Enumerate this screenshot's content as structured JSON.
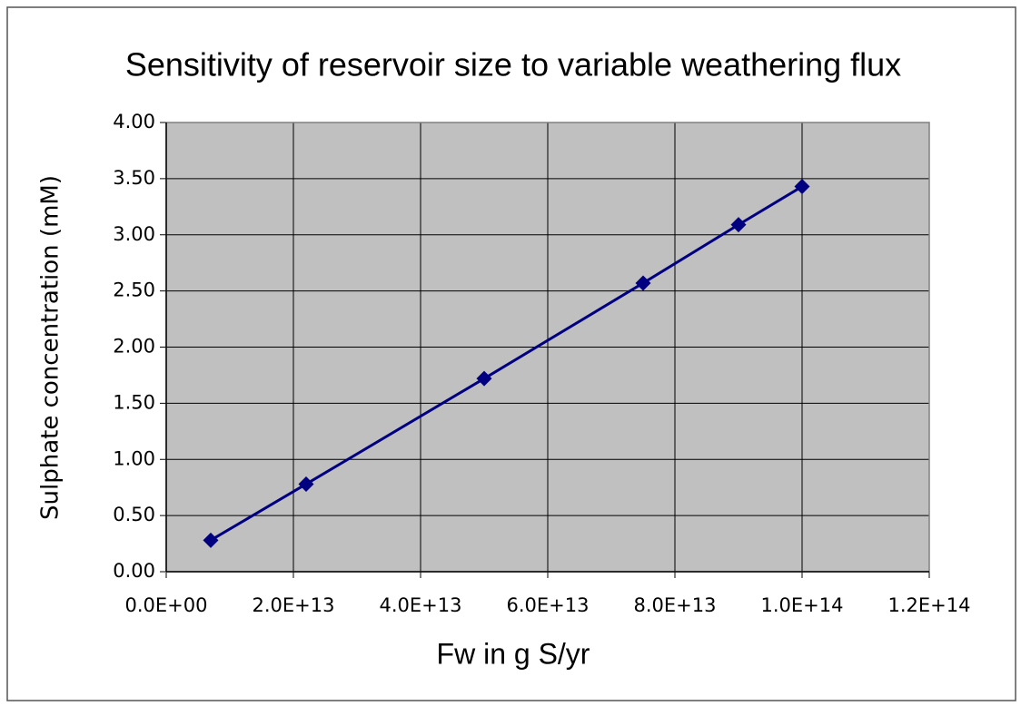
{
  "chart_data": {
    "type": "line",
    "title": "Sensitivity of reservoir size to variable weathering flux",
    "x_label": "Fw in g S/yr",
    "y_label": "Sulphate concentration (mM)",
    "x": [
      7000000000000,
      22000000000000,
      50000000000000,
      75000000000000,
      90000000000000,
      100000000000000
    ],
    "series": [
      {
        "color": "#000080",
        "values": [
          0.28,
          0.78,
          1.72,
          2.57,
          3.09,
          3.43
        ]
      }
    ],
    "xlim": [
      0,
      120000000000000
    ],
    "xticks": [
      {
        "value": 0,
        "label": "0.0E+00"
      },
      {
        "value": 20000000000000,
        "label": "2.0E+13"
      },
      {
        "value": 40000000000000,
        "label": "4.0E+13"
      },
      {
        "value": 60000000000000,
        "label": "6.0E+13"
      },
      {
        "value": 80000000000000,
        "label": "8.0E+13"
      },
      {
        "value": 100000000000000,
        "label": "1.0E+14"
      },
      {
        "value": 120000000000000,
        "label": "1.2E+14"
      }
    ],
    "ylim": [
      0,
      4
    ],
    "yticks": [
      {
        "value": 0,
        "label": "0.00"
      },
      {
        "value": 0.5,
        "label": "0.50"
      },
      {
        "value": 1,
        "label": "1.00"
      },
      {
        "value": 1.5,
        "label": "1.50"
      },
      {
        "value": 2,
        "label": "2.00"
      },
      {
        "value": 2.5,
        "label": "2.50"
      },
      {
        "value": 3,
        "label": "3.00"
      },
      {
        "value": 3.5,
        "label": "3.50"
      },
      {
        "value": 4,
        "label": "4.00"
      }
    ],
    "grid": true,
    "plot_background": "#c0c0c0"
  }
}
